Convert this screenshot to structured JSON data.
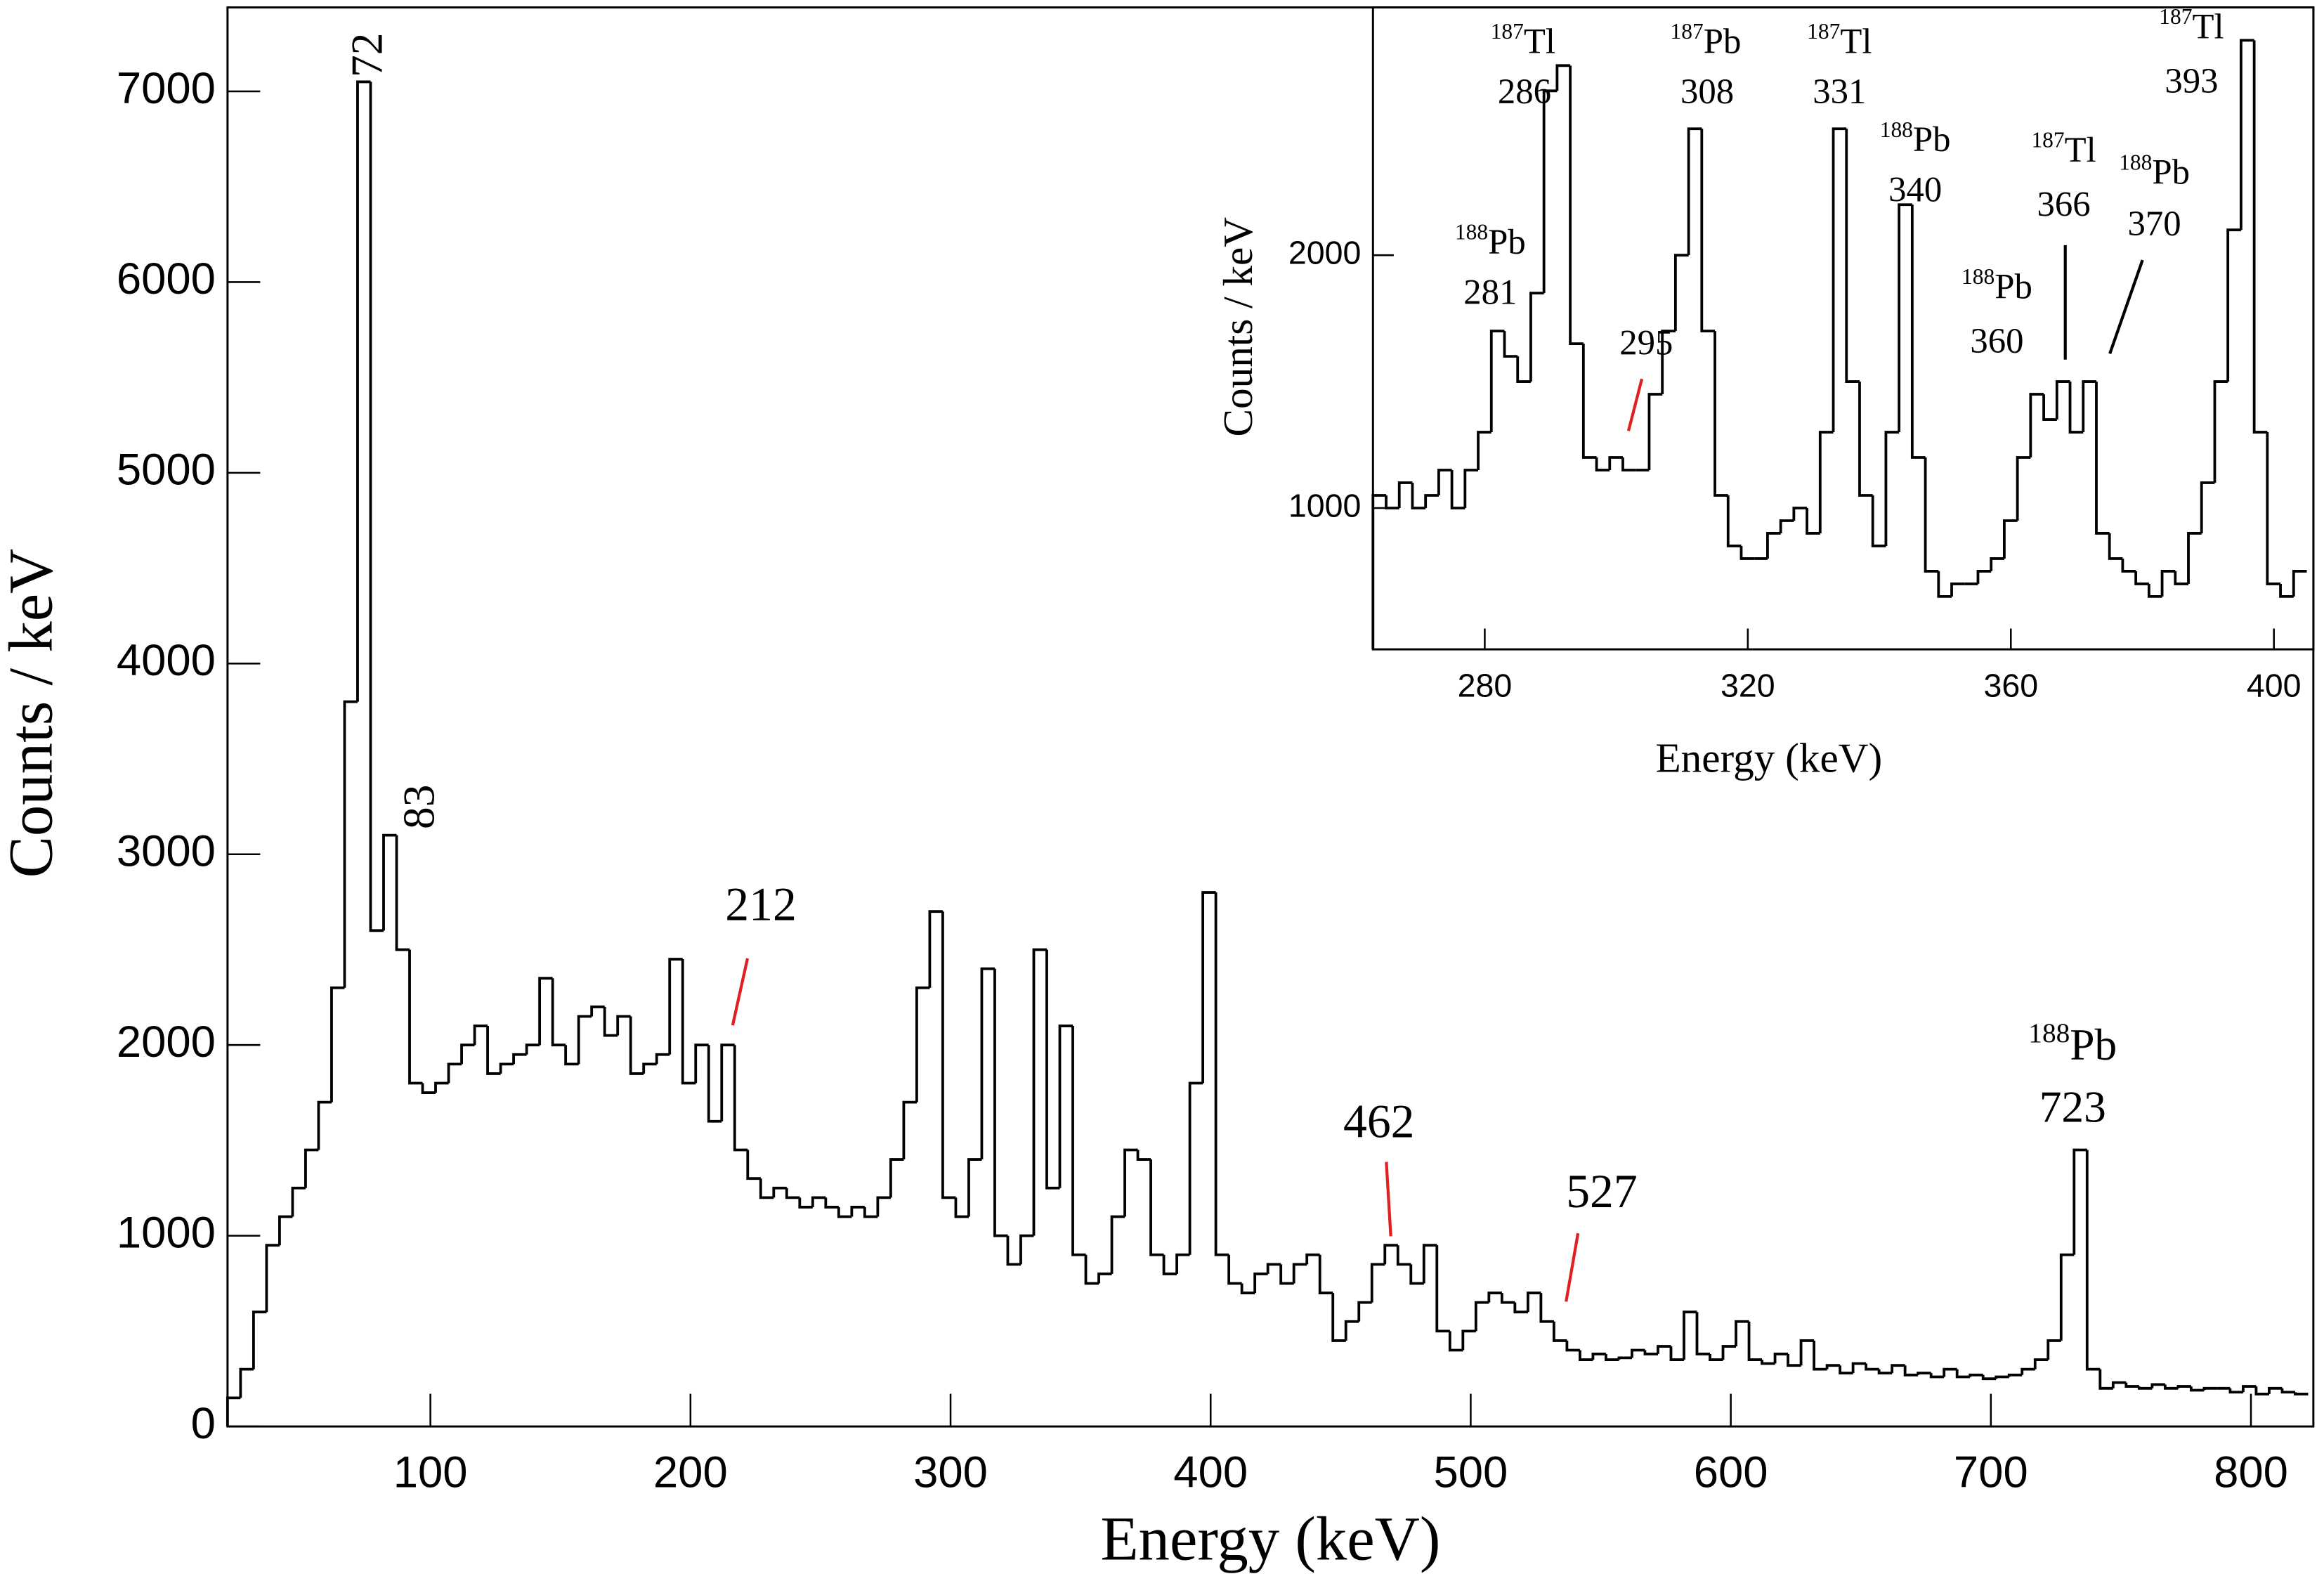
{
  "chart_data": [
    {
      "type": "histogram",
      "xlabel": "Energy (keV)",
      "ylabel": "Counts / keV",
      "color": "#000000",
      "xlim": [
        22,
        824
      ],
      "ylim": [
        0,
        7440
      ],
      "xticks": [
        100,
        200,
        300,
        400,
        500,
        600,
        700,
        800
      ],
      "yticks": [
        0,
        1000,
        2000,
        3000,
        4000,
        5000,
        6000,
        7000
      ],
      "bins": [
        22,
        27,
        32,
        37,
        42,
        47,
        52,
        57,
        62,
        67,
        72,
        77,
        82,
        87,
        92,
        97,
        102,
        107,
        112,
        117,
        122,
        127,
        132,
        137,
        142,
        147,
        152,
        157,
        162,
        167,
        172,
        177,
        182,
        187,
        192,
        197,
        202,
        207,
        212,
        217,
        222,
        227,
        232,
        237,
        242,
        247,
        252,
        257,
        262,
        267,
        272,
        277,
        282,
        287,
        292,
        297,
        302,
        307,
        312,
        317,
        322,
        327,
        332,
        337,
        342,
        347,
        352,
        357,
        362,
        367,
        372,
        377,
        382,
        387,
        392,
        397,
        402,
        407,
        412,
        417,
        422,
        427,
        432,
        437,
        442,
        447,
        452,
        457,
        462,
        467,
        472,
        477,
        482,
        487,
        492,
        497,
        502,
        507,
        512,
        517,
        522,
        527,
        532,
        537,
        542,
        547,
        552,
        557,
        562,
        567,
        572,
        577,
        582,
        587,
        592,
        597,
        602,
        607,
        612,
        617,
        622,
        627,
        632,
        637,
        642,
        647,
        652,
        657,
        662,
        667,
        672,
        677,
        682,
        687,
        692,
        697,
        702,
        707,
        712,
        717,
        722,
        727,
        732,
        737,
        742,
        747,
        752,
        757,
        762,
        767,
        772,
        777,
        782,
        787,
        792,
        797,
        802,
        807,
        812,
        817,
        822
      ],
      "values": [
        150,
        300,
        600,
        950,
        1100,
        1250,
        1450,
        1700,
        2300,
        3800,
        7050,
        2600,
        3100,
        2500,
        1800,
        1750,
        1800,
        1900,
        2000,
        2100,
        1850,
        1900,
        1950,
        2000,
        2350,
        2000,
        1900,
        2150,
        2200,
        2050,
        2150,
        1850,
        1900,
        1950,
        2450,
        1800,
        2000,
        1600,
        2000,
        1450,
        1300,
        1200,
        1250,
        1200,
        1150,
        1200,
        1150,
        1100,
        1150,
        1100,
        1200,
        1400,
        1700,
        2300,
        2700,
        1200,
        1100,
        1400,
        2400,
        1000,
        850,
        1000,
        2500,
        1250,
        2100,
        900,
        750,
        800,
        1100,
        1450,
        1400,
        900,
        800,
        900,
        1800,
        2800,
        900,
        750,
        700,
        800,
        850,
        750,
        850,
        900,
        700,
        450,
        550,
        650,
        850,
        950,
        850,
        750,
        950,
        500,
        400,
        500,
        650,
        700,
        650,
        600,
        700,
        550,
        450,
        400,
        350,
        380,
        350,
        360,
        400,
        380,
        420,
        350,
        600,
        380,
        350,
        420,
        550,
        350,
        330,
        380,
        320,
        450,
        300,
        320,
        280,
        330,
        300,
        280,
        320,
        270,
        280,
        260,
        300,
        260,
        270,
        250,
        260,
        270,
        300,
        350,
        450,
        900,
        1450,
        300,
        200,
        230,
        210,
        200,
        220,
        200,
        210,
        190,
        200,
        200,
        180,
        210,
        170,
        200,
        180,
        170
      ],
      "annotations": [
        {
          "label": "72",
          "color": "#000000"
        },
        {
          "label": "83",
          "color": "#000000"
        },
        {
          "label": "212",
          "color": "#e02020"
        },
        {
          "label": "462",
          "color": "#e02020"
        },
        {
          "label": "527",
          "color": "#e02020"
        },
        {
          "mass": "188",
          "element": "Pb",
          "label": "723",
          "color": "#000000"
        }
      ]
    },
    {
      "type": "histogram",
      "xlabel": "Energy (keV)",
      "ylabel": "Counts / keV",
      "color": "#000000",
      "xlim": [
        263,
        406
      ],
      "ylim": [
        441,
        2980
      ],
      "xticks": [
        280,
        320,
        360,
        400
      ],
      "yticks": [
        1000,
        2000
      ],
      "bins": [
        263,
        265,
        267,
        269,
        271,
        273,
        275,
        277,
        279,
        281,
        283,
        285,
        287,
        289,
        291,
        293,
        295,
        297,
        299,
        301,
        303,
        305,
        307,
        309,
        311,
        313,
        315,
        317,
        319,
        321,
        323,
        325,
        327,
        329,
        331,
        333,
        335,
        337,
        339,
        341,
        343,
        345,
        347,
        349,
        351,
        353,
        355,
        357,
        359,
        361,
        363,
        365,
        367,
        369,
        371,
        373,
        375,
        377,
        379,
        381,
        383,
        385,
        387,
        389,
        391,
        393,
        395,
        397,
        399,
        401,
        403,
        405
      ],
      "values": [
        1050,
        1000,
        1100,
        1000,
        1050,
        1150,
        1000,
        1150,
        1300,
        1700,
        1600,
        1500,
        1850,
        2650,
        2750,
        1650,
        1200,
        1150,
        1200,
        1150,
        1150,
        1450,
        1700,
        2000,
        2500,
        1700,
        1050,
        850,
        800,
        800,
        900,
        950,
        1000,
        900,
        1300,
        2500,
        1500,
        1050,
        850,
        1300,
        2200,
        1200,
        750,
        650,
        700,
        700,
        750,
        800,
        950,
        1200,
        1450,
        1350,
        1500,
        1300,
        1500,
        900,
        800,
        750,
        700,
        650,
        750,
        700,
        900,
        1100,
        1500,
        2100,
        2850,
        1300,
        700,
        650,
        750
      ],
      "annotations": [
        {
          "mass": "187",
          "element": "Tl",
          "label": "286",
          "color": "#000000"
        },
        {
          "mass": "187",
          "element": "Pb",
          "label": "308",
          "color": "#000000"
        },
        {
          "mass": "187",
          "element": "Tl",
          "label": "331",
          "color": "#000000"
        },
        {
          "mass": "188",
          "element": "Pb",
          "label": "340",
          "color": "#000000"
        },
        {
          "mass": "188",
          "element": "Pb",
          "label": "281",
          "color": "#000000"
        },
        {
          "label": "295",
          "color": "#e02020"
        },
        {
          "mass": "187",
          "element": "Tl",
          "label": "366",
          "color": "#000000"
        },
        {
          "mass": "188",
          "element": "Pb",
          "label": "370",
          "color": "#000000"
        },
        {
          "mass": "188",
          "element": "Pb",
          "label": "360",
          "color": "#000000"
        },
        {
          "mass": "187",
          "element": "Tl",
          "label": "393",
          "color": "#000000"
        }
      ]
    }
  ]
}
